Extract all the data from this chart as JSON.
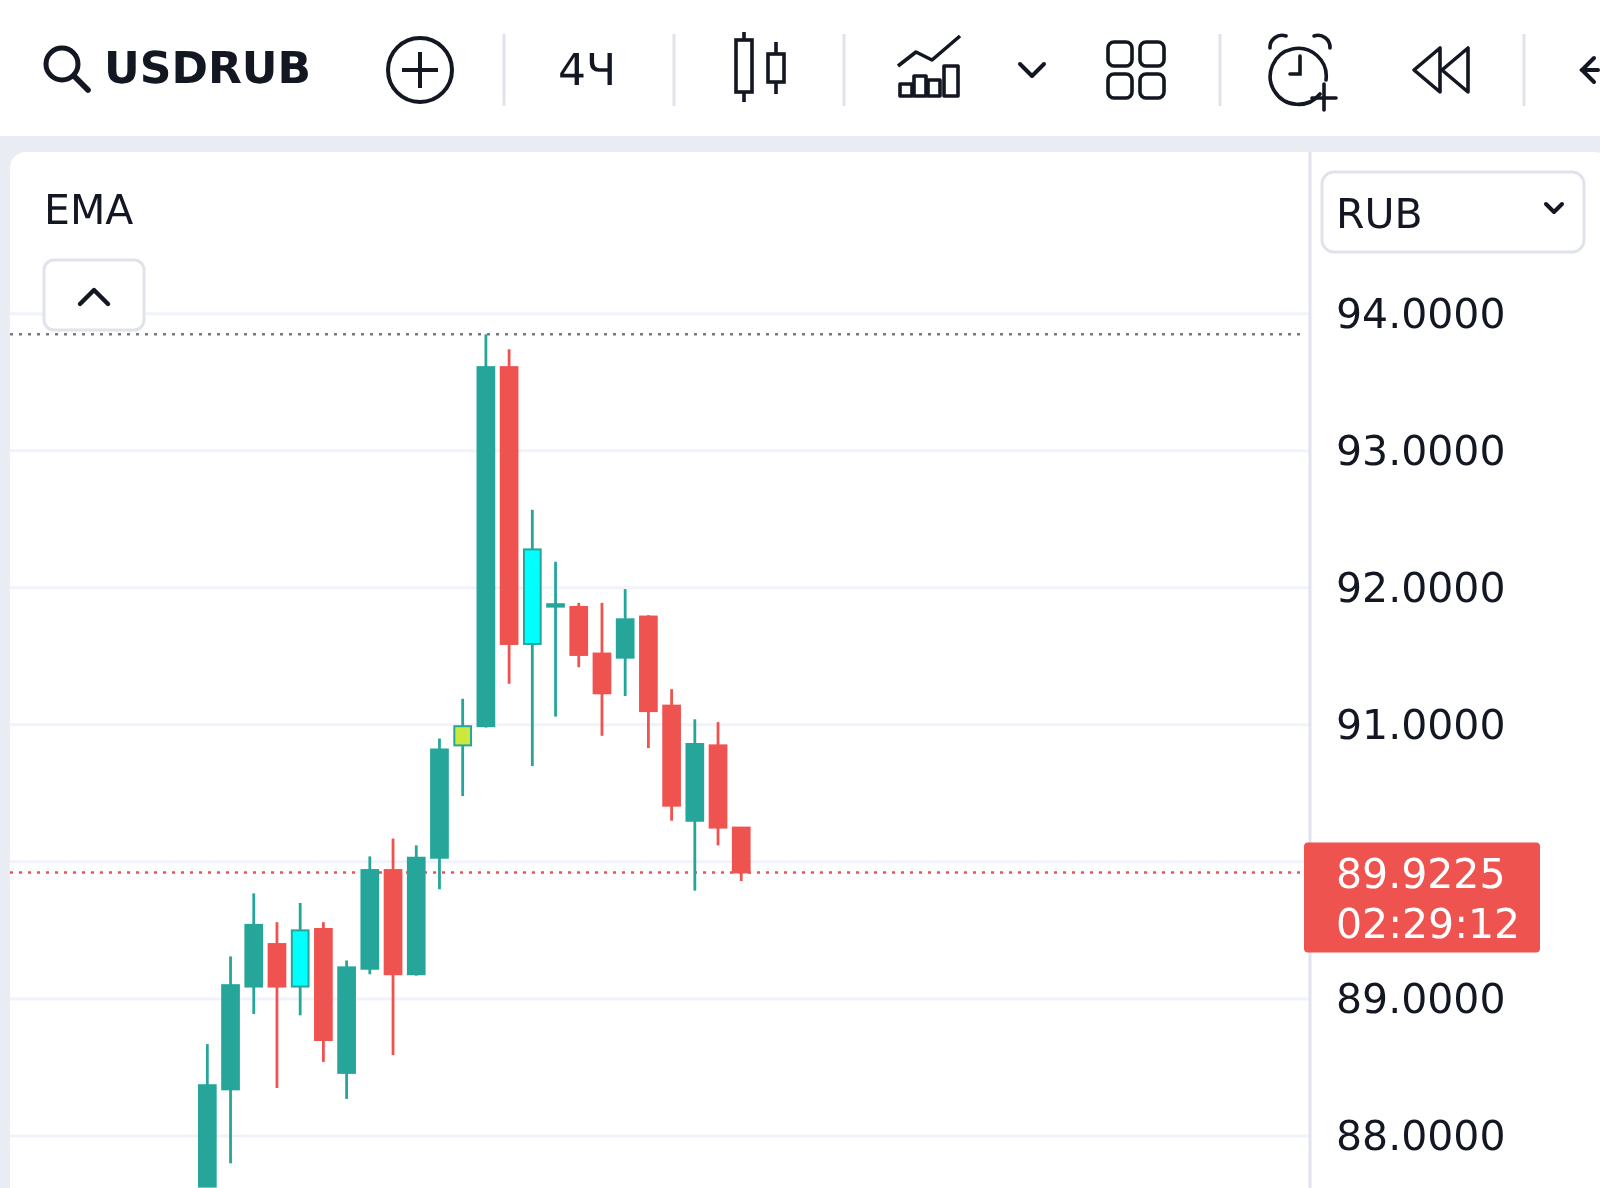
{
  "chart_data": {
    "type": "candlestick",
    "title": "USDRUB",
    "subtitle": "4Ч",
    "ylabel": "RUB",
    "categories": [
      null,
      null,
      null,
      null,
      null,
      null,
      null,
      null,
      null,
      null,
      null,
      null,
      null,
      null,
      null,
      null,
      null,
      null,
      null,
      null,
      null,
      null,
      null,
      null,
      null,
      null,
      null,
      null,
      null,
      null,
      null,
      null,
      null,
      null,
      null,
      null,
      null,
      null,
      null,
      null,
      null,
      null,
      null,
      null,
      null,
      null,
      null,
      null,
      null,
      null,
      null,
      null,
      null,
      null,
      null,
      null
    ],
    "ohlc": [
      null,
      null,
      null,
      null,
      null,
      null,
      null,
      null,
      [
        87.63,
        88.67,
        87.63,
        88.37
      ],
      [
        88.34,
        89.31,
        87.8,
        89.1
      ],
      [
        89.09,
        89.77,
        88.89,
        89.54
      ],
      [
        89.4,
        89.56,
        88.35,
        89.09
      ],
      [
        89.09,
        89.7,
        88.88,
        89.5
      ],
      [
        89.51,
        89.56,
        88.54,
        88.7
      ],
      [
        88.46,
        89.28,
        88.27,
        89.23
      ],
      [
        89.22,
        90.04,
        89.18,
        89.94
      ],
      [
        89.94,
        90.17,
        88.59,
        89.18
      ],
      [
        89.18,
        90.12,
        89.17,
        90.03
      ],
      [
        90.03,
        90.9,
        89.8,
        90.82
      ],
      [
        90.85,
        91.19,
        90.48,
        90.99
      ],
      [
        90.99,
        93.85,
        90.98,
        93.61
      ],
      [
        93.61,
        93.74,
        91.3,
        91.59
      ],
      [
        91.59,
        92.57,
        90.7,
        92.28
      ],
      [
        91.87,
        92.19,
        91.06,
        91.88
      ],
      [
        91.86,
        91.89,
        91.42,
        91.51
      ],
      [
        91.52,
        91.89,
        90.92,
        91.23
      ],
      [
        91.49,
        91.99,
        91.21,
        91.77
      ],
      [
        91.79,
        91.8,
        90.83,
        91.1
      ],
      [
        91.14,
        91.26,
        90.3,
        90.41
      ],
      [
        90.3,
        91.04,
        89.79,
        90.86
      ],
      [
        90.85,
        91.02,
        90.12,
        90.25
      ],
      [
        90.25,
        90.25,
        89.86,
        89.9225
      ],
      null,
      null,
      null,
      null,
      null,
      null,
      null,
      null,
      null,
      null,
      null,
      null,
      null,
      null,
      null,
      null,
      null,
      null,
      null,
      null,
      null,
      null,
      null,
      null
    ],
    "colors": [
      null,
      null,
      null,
      null,
      null,
      null,
      null,
      null,
      "#26a69a",
      "#26a69a",
      "#26a69a",
      "#ef5350",
      "#00ffff",
      "#ef5350",
      "#26a69a",
      "#26a69a",
      "#ef5350",
      "#26a69a",
      "#26a69a",
      "#cde83c",
      "#26a69a",
      "#ef5350",
      "#00ffff",
      "#26a69a",
      "#ef5350",
      "#ef5350",
      "#26a69a",
      "#ef5350",
      "#ef5350",
      "#26a69a",
      "#ef5350",
      "#ef5350",
      null,
      null,
      null,
      null,
      null,
      null,
      null,
      null,
      null,
      null,
      null,
      null,
      null,
      null,
      null,
      null,
      null,
      null,
      null,
      null,
      null,
      null,
      null,
      null
    ],
    "ylim": [
      87.62,
      95.18
    ],
    "yticks": [
      {
        "value": 88,
        "label": "88.0000"
      },
      {
        "value": 89,
        "label": "89.0000"
      },
      {
        "value": 90,
        "label": null
      },
      {
        "value": 91,
        "label": "91.0000"
      },
      {
        "value": 92,
        "label": "92.0000"
      },
      {
        "value": 93,
        "label": "93.0000"
      },
      {
        "value": 94,
        "label": "94.0000"
      }
    ],
    "grid": "y",
    "tick_labels": "y",
    "ref_lines": [
      {
        "axis": "y",
        "value": 93.85,
        "color": "#787b86",
        "line_style": "dotted"
      },
      {
        "axis": "y",
        "value": 89.9225,
        "label": "89.9225",
        "color": "#ef5350",
        "line_style": "dotted"
      }
    ],
    "annotations": [
      "EMA",
      "02:29:12"
    ]
  }
}
